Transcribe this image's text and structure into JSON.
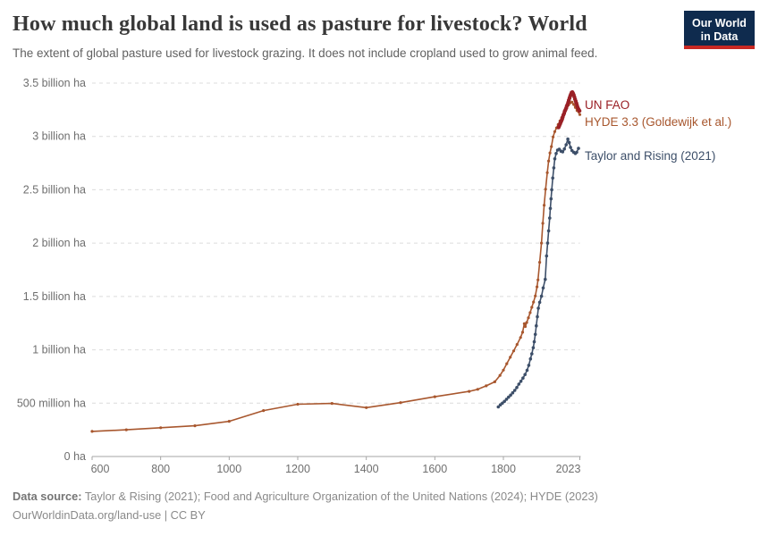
{
  "header": {
    "title": "How much global land is used as pasture for livestock? World",
    "subtitle": "The extent of global pasture used for livestock grazing. It does not include cropland used to grow animal feed.",
    "logo": {
      "line1": "Our World",
      "line2": "in Data",
      "bg": "#0F2B4E",
      "stripe": "#C82823"
    }
  },
  "footer": {
    "source_label": "Data source:",
    "sources": " Taylor & Rising (2021); Food and Agriculture Organization of the United Nations (2024); HYDE (2023)",
    "license_line": "OurWorldinData.org/land-use | CC BY"
  },
  "chart_data": {
    "type": "line",
    "title": "How much global land is used as pasture for livestock? World",
    "xlabel": "",
    "ylabel": "",
    "unit": "million ha",
    "xlim": [
      600,
      2023
    ],
    "ylim": [
      0,
      3500
    ],
    "grid": true,
    "grid_color": "#DCDCDC",
    "axis_color": "#A6A6A6",
    "legend_position": "right-of-line-ends",
    "x_ticks": [
      {
        "year": 600,
        "label": "600",
        "dx": 9
      },
      {
        "year": 800,
        "label": "800",
        "dx": 0
      },
      {
        "year": 1000,
        "label": "1000",
        "dx": 0
      },
      {
        "year": 1200,
        "label": "1200",
        "dx": 0
      },
      {
        "year": 1400,
        "label": "1400",
        "dx": 0
      },
      {
        "year": 1600,
        "label": "1600",
        "dx": 0
      },
      {
        "year": 1800,
        "label": "1800",
        "dx": 0
      },
      {
        "year": 2023,
        "label": "2023",
        "dx": -13
      }
    ],
    "y_ticks": [
      {
        "value": 0,
        "label": "0 ha"
      },
      {
        "value": 500,
        "label": "500 million ha"
      },
      {
        "value": 1000,
        "label": "1 billion ha"
      },
      {
        "value": 1500,
        "label": "1.5 billion ha"
      },
      {
        "value": 2000,
        "label": "2 billion ha"
      },
      {
        "value": 2500,
        "label": "2.5 billion ha"
      },
      {
        "value": 3000,
        "label": "3 billion ha"
      },
      {
        "value": 3500,
        "label": "3.5 billion ha"
      }
    ],
    "series": [
      {
        "name": "HYDE 3.3 (Goldewijk et al.)",
        "color": "#A8572E",
        "stroke_width": 1.6,
        "marker_r": 1.6,
        "points": [
          [
            600,
            235
          ],
          [
            700,
            250
          ],
          [
            800,
            270
          ],
          [
            900,
            288
          ],
          [
            1000,
            330
          ],
          [
            1100,
            430
          ],
          [
            1200,
            490
          ],
          [
            1300,
            497
          ],
          [
            1400,
            458
          ],
          [
            1500,
            505
          ],
          [
            1600,
            560
          ],
          [
            1700,
            610
          ],
          [
            1725,
            630
          ],
          [
            1750,
            662
          ],
          [
            1775,
            700
          ],
          [
            1790,
            760
          ],
          [
            1800,
            810
          ],
          [
            1810,
            870
          ],
          [
            1820,
            930
          ],
          [
            1830,
            990
          ],
          [
            1840,
            1050
          ],
          [
            1850,
            1115
          ],
          [
            1856,
            1165
          ],
          [
            1861,
            1245
          ],
          [
            1864,
            1218
          ],
          [
            1868,
            1256
          ],
          [
            1873,
            1300
          ],
          [
            1878,
            1348
          ],
          [
            1883,
            1398
          ],
          [
            1888,
            1448
          ],
          [
            1893,
            1505
          ],
          [
            1898,
            1590
          ],
          [
            1901,
            1655
          ],
          [
            1906,
            1820
          ],
          [
            1911,
            2000
          ],
          [
            1915,
            2185
          ],
          [
            1919,
            2355
          ],
          [
            1923,
            2505
          ],
          [
            1928,
            2660
          ],
          [
            1932,
            2770
          ],
          [
            1936,
            2845
          ],
          [
            1940,
            2905
          ],
          [
            1945,
            2995
          ],
          [
            1950,
            3045
          ],
          [
            1955,
            3080
          ],
          [
            1960,
            3112
          ],
          [
            1965,
            3145
          ],
          [
            1970,
            3175
          ],
          [
            1975,
            3205
          ],
          [
            1980,
            3240
          ],
          [
            1985,
            3270
          ],
          [
            1990,
            3295
          ],
          [
            1995,
            3315
          ],
          [
            2000,
            3322
          ],
          [
            2005,
            3300
          ],
          [
            2010,
            3272
          ],
          [
            2015,
            3242
          ],
          [
            2023,
            3205
          ]
        ]
      },
      {
        "name": "Taylor and Rising (2021)",
        "color": "#3D4F69",
        "stroke_width": 1.6,
        "marker_r": 1.8,
        "points": [
          [
            1785,
            465
          ],
          [
            1791,
            484
          ],
          [
            1797,
            500
          ],
          [
            1803,
            517
          ],
          [
            1809,
            537
          ],
          [
            1815,
            556
          ],
          [
            1821,
            575
          ],
          [
            1827,
            597
          ],
          [
            1833,
            620
          ],
          [
            1839,
            646
          ],
          [
            1845,
            678
          ],
          [
            1851,
            705
          ],
          [
            1857,
            735
          ],
          [
            1863,
            768
          ],
          [
            1869,
            808
          ],
          [
            1874,
            855
          ],
          [
            1879,
            915
          ],
          [
            1883,
            962
          ],
          [
            1887,
            1020
          ],
          [
            1890,
            1075
          ],
          [
            1893,
            1145
          ],
          [
            1896,
            1225
          ],
          [
            1899,
            1310
          ],
          [
            1902,
            1390
          ],
          [
            1906,
            1445
          ],
          [
            1911,
            1502
          ],
          [
            1916,
            1580
          ],
          [
            1922,
            1660
          ],
          [
            1926,
            1880
          ],
          [
            1929,
            2000
          ],
          [
            1932,
            2115
          ],
          [
            1935,
            2235
          ],
          [
            1937,
            2325
          ],
          [
            1939,
            2415
          ],
          [
            1941,
            2500
          ],
          [
            1944,
            2610
          ],
          [
            1947,
            2705
          ],
          [
            1950,
            2790
          ],
          [
            1954,
            2840
          ],
          [
            1958,
            2872
          ],
          [
            1963,
            2880
          ],
          [
            1968,
            2862
          ],
          [
            1973,
            2856
          ],
          [
            1978,
            2882
          ],
          [
            1983,
            2922
          ],
          [
            1988,
            2975
          ],
          [
            1992,
            2942
          ],
          [
            1996,
            2897
          ],
          [
            2000,
            2868
          ],
          [
            2005,
            2852
          ],
          [
            2010,
            2840
          ],
          [
            2014,
            2852
          ],
          [
            2019,
            2888
          ]
        ]
      },
      {
        "name": "UN FAO",
        "color": "#9A2026",
        "stroke_width": 3.5,
        "marker_r": 2.2,
        "points": [
          [
            1961,
            3085
          ],
          [
            1963,
            3100
          ],
          [
            1965,
            3115
          ],
          [
            1967,
            3130
          ],
          [
            1969,
            3145
          ],
          [
            1971,
            3160
          ],
          [
            1973,
            3180
          ],
          [
            1975,
            3200
          ],
          [
            1977,
            3215
          ],
          [
            1979,
            3235
          ],
          [
            1981,
            3250
          ],
          [
            1983,
            3265
          ],
          [
            1985,
            3285
          ],
          [
            1987,
            3300
          ],
          [
            1989,
            3320
          ],
          [
            1991,
            3340
          ],
          [
            1993,
            3360
          ],
          [
            1995,
            3380
          ],
          [
            1997,
            3395
          ],
          [
            1999,
            3410
          ],
          [
            2001,
            3415
          ],
          [
            2003,
            3405
          ],
          [
            2005,
            3390
          ],
          [
            2007,
            3370
          ],
          [
            2009,
            3350
          ],
          [
            2011,
            3330
          ],
          [
            2013,
            3310
          ],
          [
            2015,
            3290
          ],
          [
            2017,
            3270
          ],
          [
            2019,
            3255
          ],
          [
            2021,
            3245
          ],
          [
            2022,
            3240
          ]
        ]
      }
    ]
  }
}
